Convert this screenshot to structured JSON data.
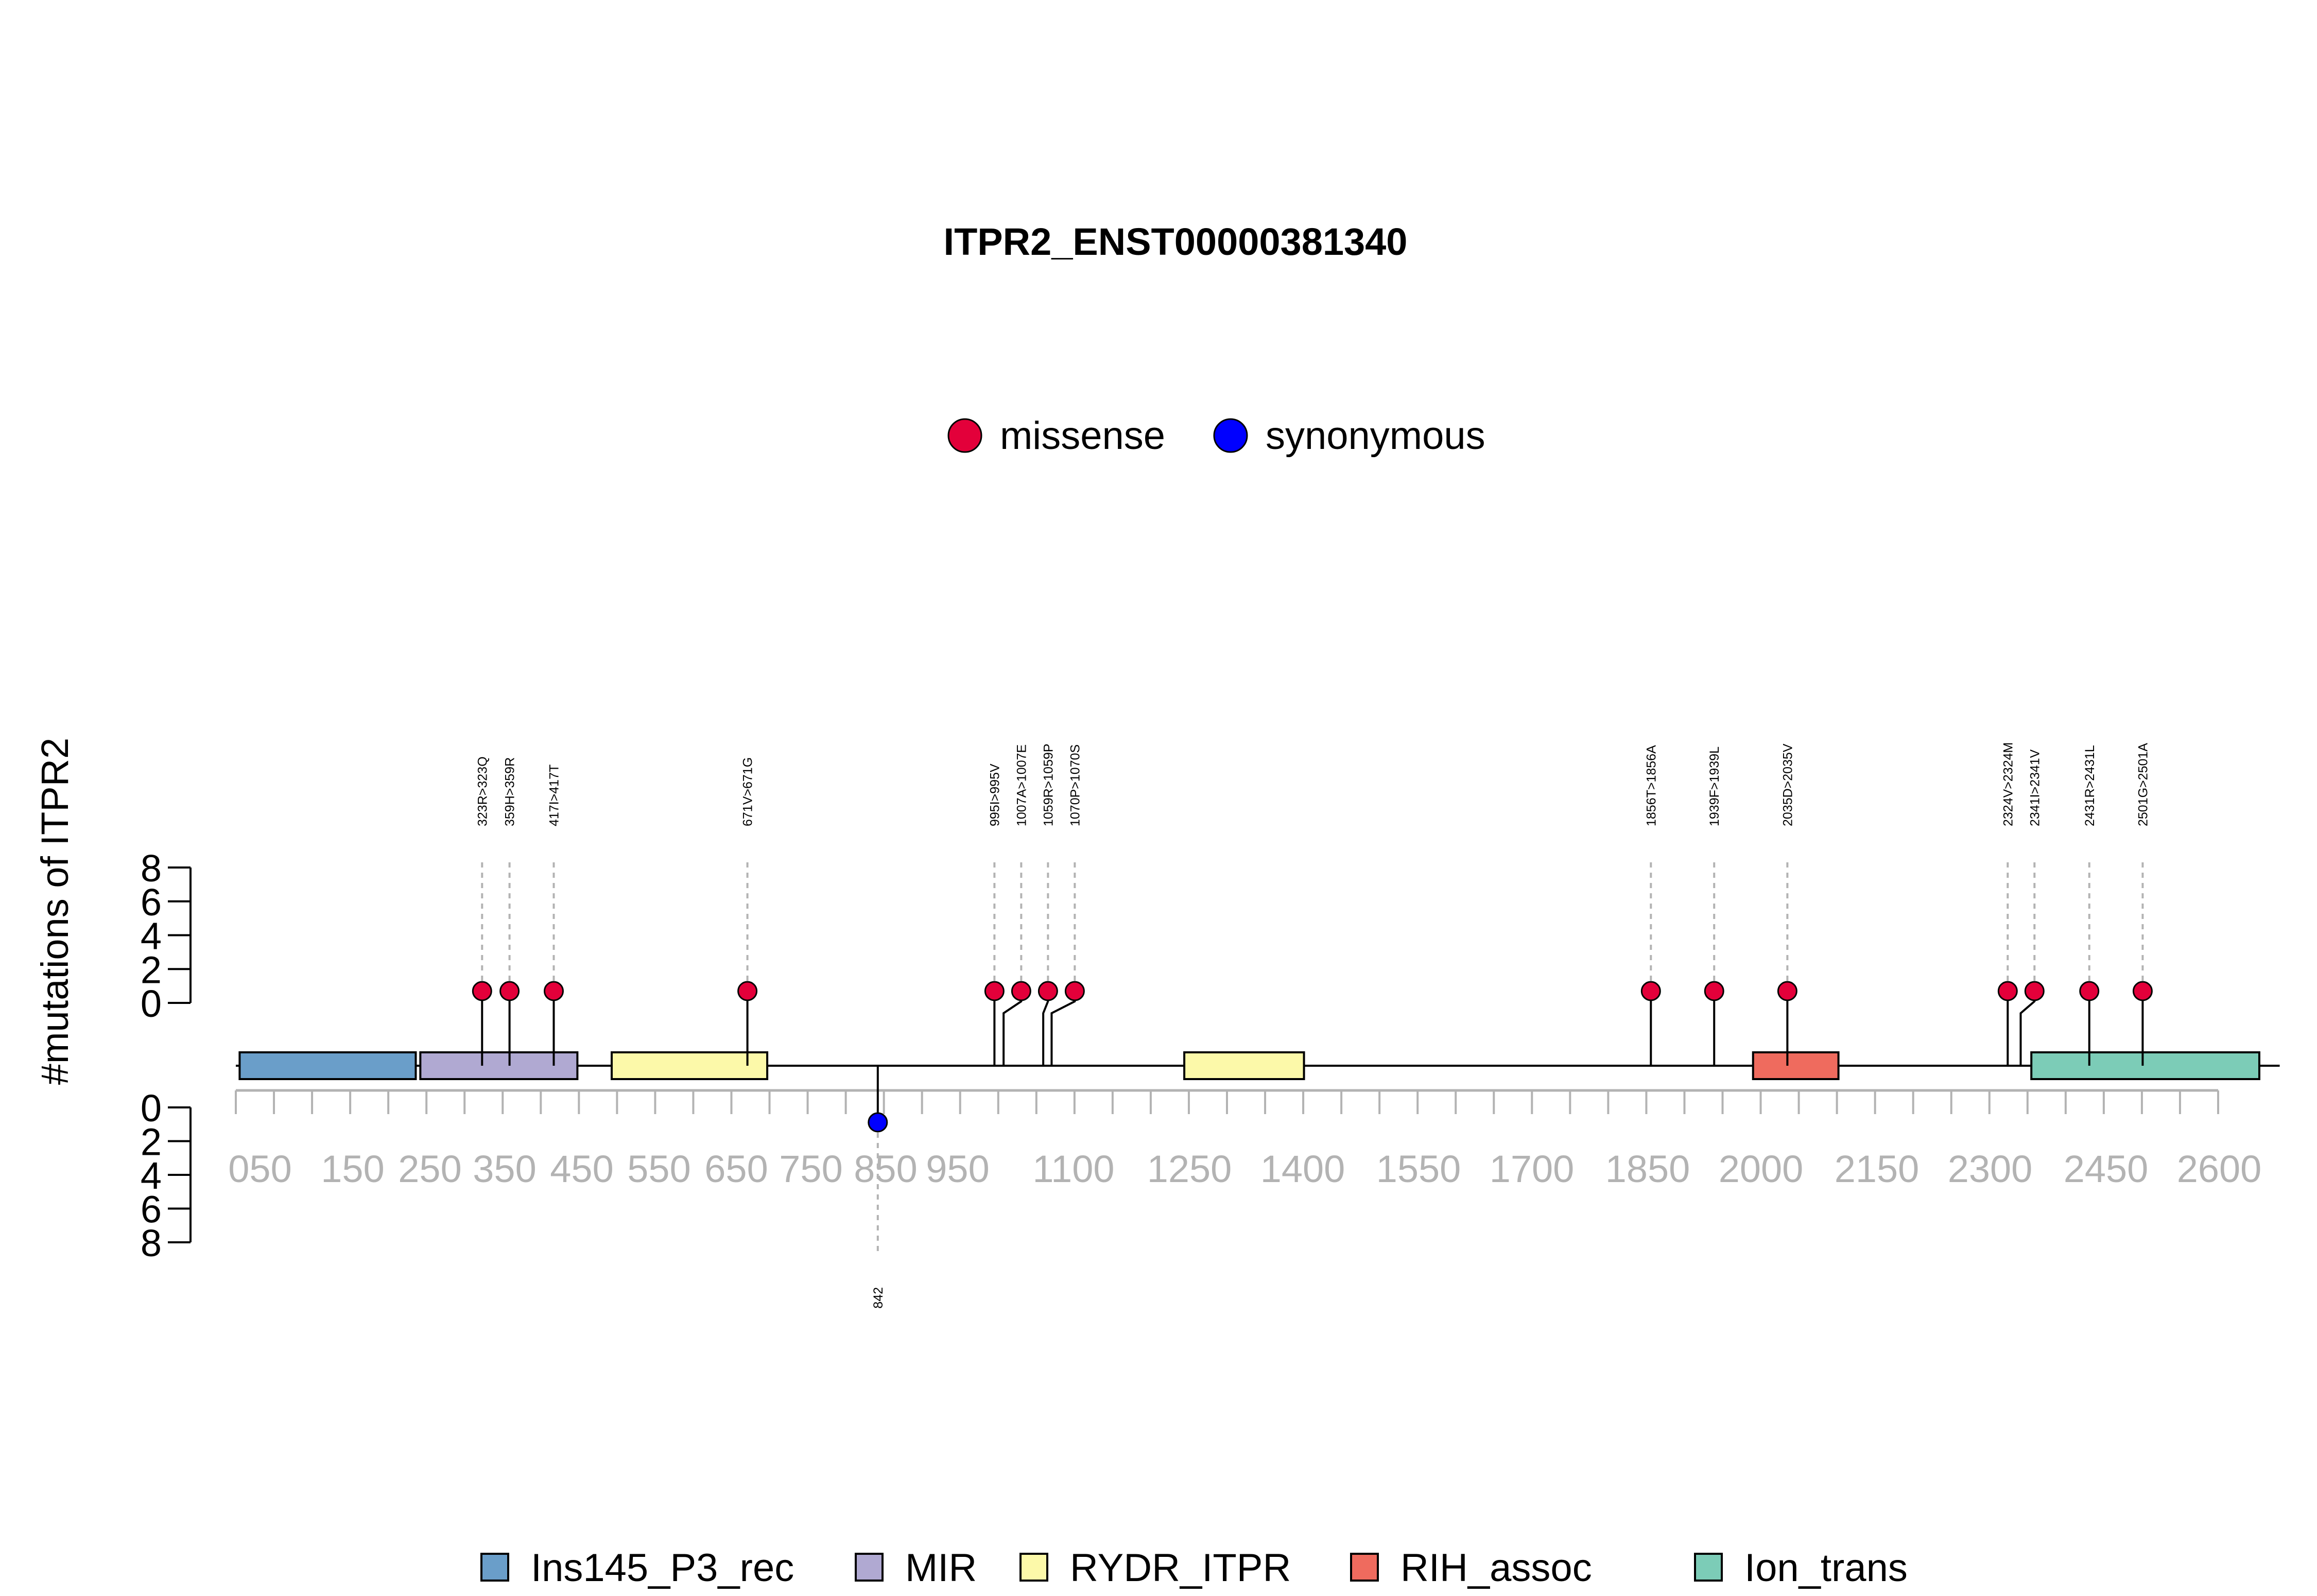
{
  "chart_data": {
    "type": "lollipop",
    "title": "ITPR2_ENST00000381340",
    "ylabel": "#mutations of ITPR2",
    "protein_length": 2701,
    "x_ticks": [
      "050",
      "150",
      "250",
      "350",
      "450",
      "550",
      "650",
      "750",
      "850",
      "950",
      "1100",
      "1250",
      "1400",
      "1550",
      "1700",
      "1850",
      "2000",
      "2150",
      "2300",
      "2450",
      "2600"
    ],
    "y_ticks_upper": [
      "8",
      "6",
      "4",
      "2",
      "0"
    ],
    "y_ticks_lower": [
      "0",
      "2",
      "4",
      "6",
      "8"
    ],
    "mutation_legend": [
      {
        "name": "missense",
        "color": "#e3003a"
      },
      {
        "name": "synonymous",
        "color": "#0000ff"
      }
    ],
    "domain_legend": [
      {
        "name": "Ins145_P3_rec",
        "color": "#6a9ec9"
      },
      {
        "name": "MIR",
        "color": "#b0a9d2"
      },
      {
        "name": "RYDR_ITPR",
        "color": "#fcf9a9"
      },
      {
        "name": "RIH_assoc",
        "color": "#ef6b5e"
      },
      {
        "name": "Ion_trans",
        "color": "#7cccb7"
      }
    ],
    "domains": [
      {
        "name": "Ins145_P3_rec",
        "start": 5,
        "end": 236
      },
      {
        "name": "MIR",
        "start": 242,
        "end": 448
      },
      {
        "name": "RYDR_ITPR",
        "start": 493,
        "end": 697
      },
      {
        "name": "RYDR_ITPR",
        "start": 1244,
        "end": 1401
      },
      {
        "name": "RIH_assoc",
        "start": 1990,
        "end": 2102
      },
      {
        "name": "Ion_trans",
        "start": 2355,
        "end": 2654
      }
    ],
    "mutations_upper": [
      {
        "label": "323R>323Q",
        "position": 323,
        "count": 1,
        "type": "missense"
      },
      {
        "label": "359H>359R",
        "position": 359,
        "count": 1,
        "type": "missense"
      },
      {
        "label": "417I>417T",
        "position": 417,
        "count": 1,
        "type": "missense"
      },
      {
        "label": "671V>671G",
        "position": 671,
        "count": 1,
        "type": "missense"
      },
      {
        "label": "995I>995V",
        "position": 995,
        "count": 1,
        "type": "missense"
      },
      {
        "label": "1007A>1007E",
        "position": 1007,
        "count": 1,
        "type": "missense"
      },
      {
        "label": "1059R>1059P",
        "position": 1059,
        "count": 1,
        "type": "missense"
      },
      {
        "label": "1070P>1070S",
        "position": 1070,
        "count": 1,
        "type": "missense"
      },
      {
        "label": "1856T>1856A",
        "position": 1856,
        "count": 1,
        "type": "missense"
      },
      {
        "label": "1939F>1939L",
        "position": 1939,
        "count": 1,
        "type": "missense"
      },
      {
        "label": "2035D>2035V",
        "position": 2035,
        "count": 1,
        "type": "missense"
      },
      {
        "label": "2324V>2324M",
        "position": 2324,
        "count": 1,
        "type": "missense"
      },
      {
        "label": "2341I>2341V",
        "position": 2341,
        "count": 1,
        "type": "missense"
      },
      {
        "label": "2431R>2431L",
        "position": 2431,
        "count": 1,
        "type": "missense"
      },
      {
        "label": "2501G>2501A",
        "position": 2501,
        "count": 1,
        "type": "missense"
      }
    ],
    "mutations_lower": [
      {
        "label": "842",
        "position": 842,
        "count": 1,
        "type": "synonymous"
      }
    ]
  }
}
